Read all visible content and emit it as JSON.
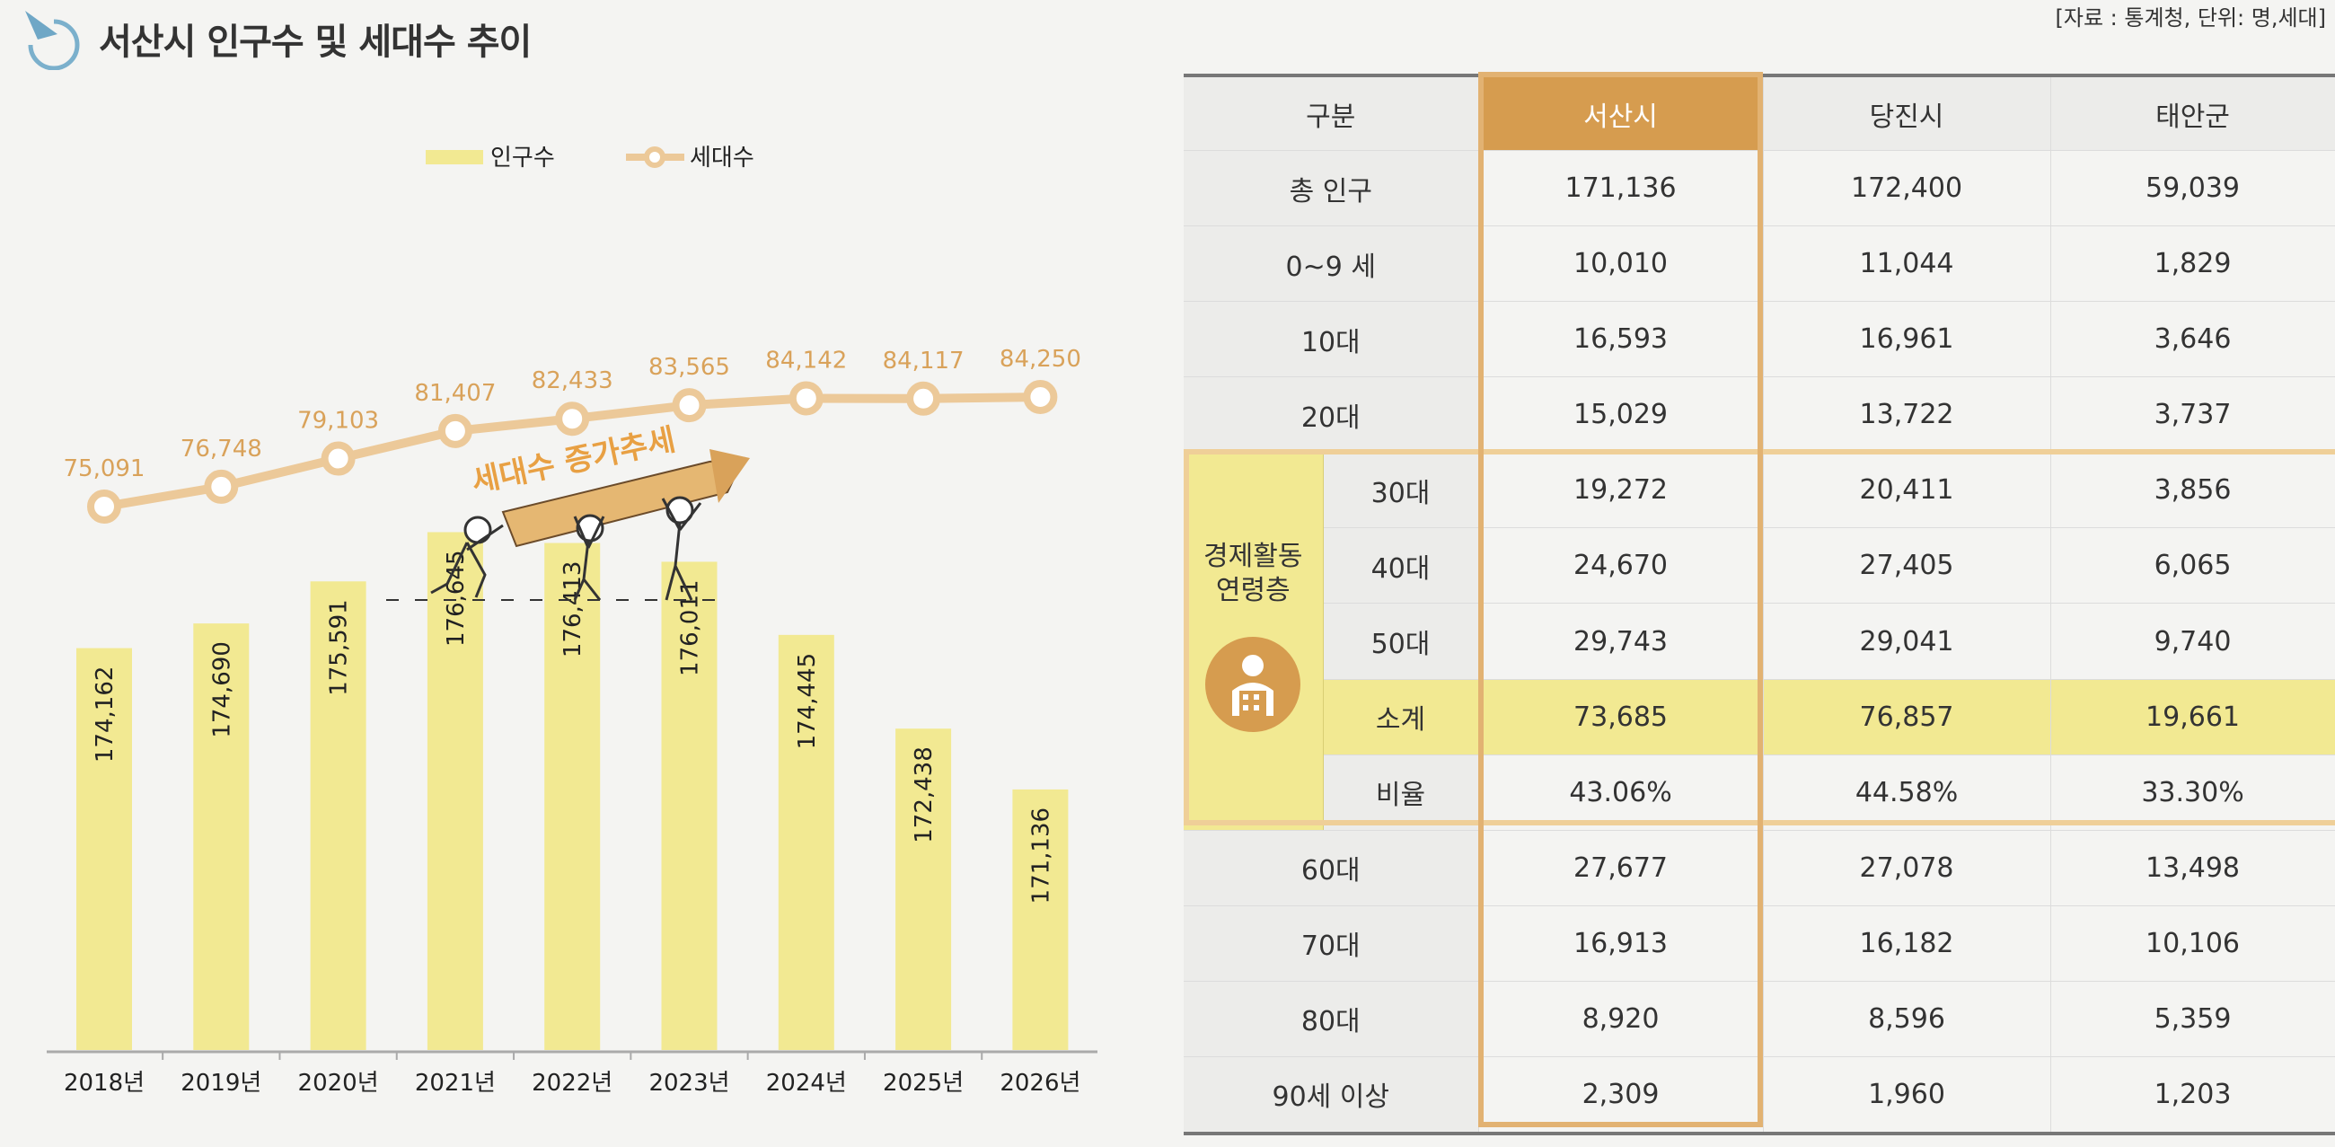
{
  "page": {
    "title": "서산시 인구수 및 세대수 추이",
    "source": "[자료 : 통계청, 단위: 명,세대]"
  },
  "colors": {
    "bar": "#f2e992",
    "line": "#ecc999",
    "line_label": "#d9a25a",
    "highlight": "#d69c4f",
    "arrow": "#e8a043"
  },
  "chart_data": {
    "type": "bar",
    "categories": [
      "2018년",
      "2019년",
      "2020년",
      "2021년",
      "2022년",
      "2023년",
      "2024년",
      "2025년",
      "2026년"
    ],
    "series": [
      {
        "name": "인구수",
        "type": "bar",
        "values": [
          174162,
          174690,
          175591,
          176645,
          176413,
          176011,
          174445,
          172438,
          171136
        ]
      },
      {
        "name": "세대수",
        "type": "line",
        "values": [
          75091,
          76748,
          79103,
          81407,
          82433,
          83565,
          84142,
          84117,
          84250
        ]
      }
    ],
    "bar_labels": [
      "174,162",
      "174,690",
      "175,591",
      "176,645",
      "176,413",
      "176,011",
      "174,445",
      "172,438",
      "171,136"
    ],
    "line_labels": [
      "75,091",
      "76,748",
      "79,103",
      "81,407",
      "82,433",
      "83,565",
      "84,142",
      "84,117",
      "84,250"
    ],
    "annotation": "세대수 증가추세",
    "legend": [
      "인구수",
      "세대수"
    ],
    "legend_position": "top",
    "grid": false
  },
  "table": {
    "headers": [
      "구분",
      "서산시",
      "당진시",
      "태안군"
    ],
    "group_label_line1": "경제활동",
    "group_label_line2": "연령층",
    "rows": [
      {
        "label": "총 인구",
        "values": [
          "171,136",
          "172,400",
          "59,039"
        ]
      },
      {
        "label": "0~9 세",
        "values": [
          "10,010",
          "11,044",
          "1,829"
        ]
      },
      {
        "label": "10대",
        "values": [
          "16,593",
          "16,961",
          "3,646"
        ]
      },
      {
        "label": "20대",
        "values": [
          "15,029",
          "13,722",
          "3,737"
        ]
      },
      {
        "label": "30대",
        "values": [
          "19,272",
          "20,411",
          "3,856"
        ]
      },
      {
        "label": "40대",
        "values": [
          "24,670",
          "27,405",
          "6,065"
        ]
      },
      {
        "label": "50대",
        "values": [
          "29,743",
          "29,041",
          "9,740"
        ]
      },
      {
        "label": "소계",
        "values": [
          "73,685",
          "76,857",
          "19,661"
        ]
      },
      {
        "label": "비율",
        "values": [
          "43.06%",
          "44.58%",
          "33.30%"
        ]
      },
      {
        "label": "60대",
        "values": [
          "27,677",
          "27,078",
          "13,498"
        ]
      },
      {
        "label": "70대",
        "values": [
          "16,913",
          "16,182",
          "10,106"
        ]
      },
      {
        "label": "80대",
        "values": [
          "8,920",
          "8,596",
          "5,359"
        ]
      },
      {
        "label": "90세 이상",
        "values": [
          "2,309",
          "1,960",
          "1,203"
        ]
      }
    ]
  }
}
